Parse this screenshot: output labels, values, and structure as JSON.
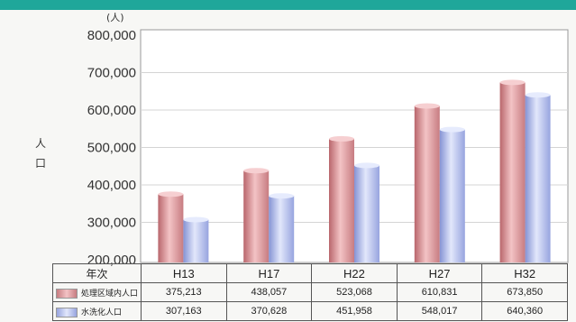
{
  "title": "",
  "chart_data": {
    "type": "bar",
    "unit": "(人)",
    "ylabel": "人口",
    "table_header": "年次",
    "categories": [
      "H13",
      "H17",
      "H22",
      "H27",
      "H32"
    ],
    "ylim": [
      200000,
      800000
    ],
    "yticks": [
      "800,000",
      "700,000",
      "600,000",
      "500,000",
      "400,000",
      "300,000",
      "200,000"
    ],
    "ytick_values": [
      800000,
      700000,
      600000,
      500000,
      400000,
      300000,
      200000
    ],
    "grid": true,
    "series": [
      {
        "name": "処理区域内人口",
        "values": [
          375213,
          438057,
          523068,
          610831,
          673850
        ],
        "labels": [
          "375,213",
          "438,057",
          "523,068",
          "610,831",
          "673,850"
        ],
        "color": "#e9a3a6"
      },
      {
        "name": "水洗化人口",
        "values": [
          307163,
          370628,
          451958,
          548017,
          640360
        ],
        "labels": [
          "307,163",
          "370,628",
          "451,958",
          "548,017",
          "640,360"
        ],
        "color": "#b9c4ee"
      }
    ]
  }
}
